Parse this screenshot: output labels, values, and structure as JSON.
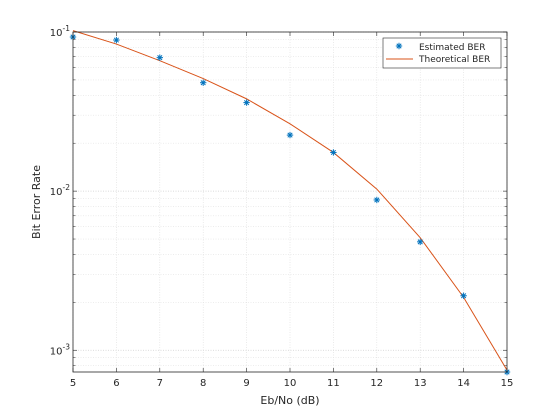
{
  "chart_data": {
    "type": "line",
    "xlabel": "Eb/No (dB)",
    "ylabel": "Bit Error Rate",
    "xlim": [
      5,
      15
    ],
    "ylim": [
      0.00073,
      0.1
    ],
    "yscale": "log",
    "grid": true,
    "minor_grid": true,
    "legend_position": "top-right",
    "x_ticks": [
      "5",
      "6",
      "7",
      "8",
      "9",
      "10",
      "11",
      "12",
      "13",
      "14",
      "15"
    ],
    "y_ticks": [
      {
        "base": "10",
        "exp": "-1",
        "value": 0.1
      },
      {
        "base": "10",
        "exp": "-2",
        "value": 0.01
      },
      {
        "base": "10",
        "exp": "-3",
        "value": 0.001
      }
    ],
    "series": [
      {
        "name": "Estimated BER",
        "kind": "scatter",
        "marker": "asterisk",
        "color": "#0072BD",
        "x": [
          5,
          6,
          7,
          8,
          9,
          10,
          11,
          12,
          13,
          14,
          15
        ],
        "y": [
          0.093,
          0.089,
          0.069,
          0.048,
          0.036,
          0.0225,
          0.0175,
          0.0088,
          0.0048,
          0.0022,
          0.00073
        ]
      },
      {
        "name": "Theoretical BER",
        "kind": "line",
        "color": "#D95319",
        "x": [
          5,
          6,
          7,
          8,
          9,
          10,
          11,
          12,
          13,
          14,
          15
        ],
        "y": [
          0.102,
          0.084,
          0.066,
          0.051,
          0.038,
          0.0265,
          0.0175,
          0.0103,
          0.0051,
          0.00215,
          0.00075
        ]
      }
    ]
  }
}
